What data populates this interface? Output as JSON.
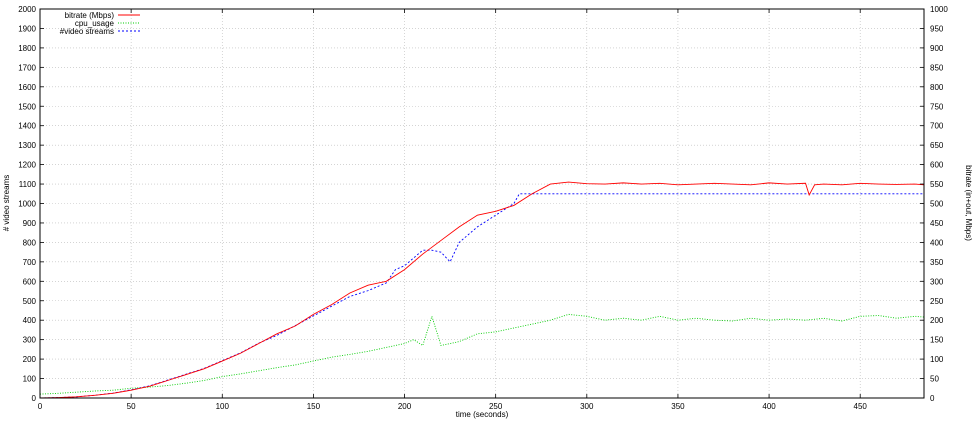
{
  "chart_data": {
    "type": "line",
    "xlabel": "time (seconds)",
    "ylabel": "# video streams",
    "y2label": "bitrate (in+out, Mbps)",
    "xlim": [
      0,
      485
    ],
    "ylim": [
      0,
      2000
    ],
    "y2lim": [
      0,
      1000
    ],
    "xticks": [
      0,
      50,
      100,
      150,
      200,
      250,
      300,
      350,
      400,
      450
    ],
    "yticks": [
      0,
      100,
      200,
      300,
      400,
      500,
      600,
      700,
      800,
      900,
      1000,
      1100,
      1200,
      1300,
      1400,
      1500,
      1600,
      1700,
      1800,
      1900,
      2000
    ],
    "y2ticks": [
      0,
      50,
      100,
      150,
      200,
      250,
      300,
      350,
      400,
      450,
      500,
      550,
      600,
      650,
      700,
      750,
      800,
      850,
      900,
      950,
      1000
    ],
    "grid": true,
    "legend_position": "top-left",
    "series": [
      {
        "name": "bitrate (Mbps)",
        "color": "#ff0000",
        "dash": "solid",
        "x": [
          0,
          10,
          20,
          30,
          40,
          50,
          60,
          70,
          80,
          90,
          100,
          110,
          120,
          130,
          140,
          150,
          160,
          170,
          180,
          190,
          200,
          210,
          220,
          230,
          240,
          250,
          260,
          270,
          280,
          290,
          300,
          310,
          320,
          330,
          340,
          350,
          360,
          370,
          380,
          390,
          400,
          410,
          420,
          422,
          425,
          430,
          440,
          450,
          460,
          470,
          480,
          485
        ],
        "y": [
          0,
          1,
          3,
          7,
          12,
          20,
          30,
          45,
          60,
          75,
          95,
          115,
          140,
          165,
          185,
          215,
          240,
          270,
          290,
          300,
          330,
          370,
          405,
          440,
          470,
          480,
          495,
          525,
          550,
          555,
          551,
          550,
          553,
          550,
          552,
          548,
          550,
          552,
          550,
          548,
          553,
          550,
          552,
          522,
          548,
          550,
          548,
          552,
          550,
          549,
          550,
          548
        ]
      },
      {
        "name": "cpu_usage",
        "color": "#00cc00",
        "dash": "dotted",
        "x": [
          0,
          10,
          20,
          30,
          40,
          50,
          60,
          70,
          80,
          90,
          100,
          110,
          120,
          130,
          140,
          150,
          160,
          170,
          180,
          190,
          200,
          205,
          210,
          215,
          220,
          230,
          240,
          250,
          260,
          270,
          280,
          290,
          300,
          310,
          320,
          330,
          340,
          350,
          360,
          370,
          380,
          390,
          400,
          410,
          420,
          430,
          440,
          450,
          460,
          470,
          480,
          485
        ],
        "y": [
          10,
          12,
          15,
          18,
          20,
          25,
          28,
          32,
          38,
          45,
          55,
          62,
          70,
          78,
          85,
          95,
          105,
          112,
          120,
          130,
          140,
          150,
          135,
          210,
          135,
          145,
          165,
          170,
          180,
          190,
          200,
          215,
          210,
          200,
          205,
          200,
          210,
          200,
          205,
          200,
          198,
          205,
          200,
          203,
          200,
          205,
          198,
          210,
          212,
          205,
          210,
          208
        ]
      },
      {
        "name": "#video streams",
        "color": "#0000ff",
        "dash": "dashed",
        "x": [
          0,
          10,
          20,
          30,
          40,
          50,
          60,
          70,
          80,
          90,
          100,
          110,
          120,
          130,
          140,
          150,
          160,
          170,
          180,
          190,
          195,
          200,
          205,
          210,
          215,
          220,
          225,
          230,
          240,
          250,
          260,
          263,
          265,
          268,
          270,
          280,
          290,
          300,
          350,
          400,
          450,
          480,
          485
        ],
        "y": [
          0,
          2,
          6,
          14,
          25,
          42,
          62,
          92,
          122,
          152,
          192,
          232,
          282,
          322,
          372,
          422,
          472,
          522,
          552,
          592,
          660,
          680,
          720,
          760,
          760,
          750,
          700,
          800,
          880,
          940,
          1000,
          1050,
          1050,
          1050,
          1050,
          1050,
          1050,
          1050,
          1050,
          1050,
          1050,
          1050,
          1050
        ]
      }
    ]
  }
}
